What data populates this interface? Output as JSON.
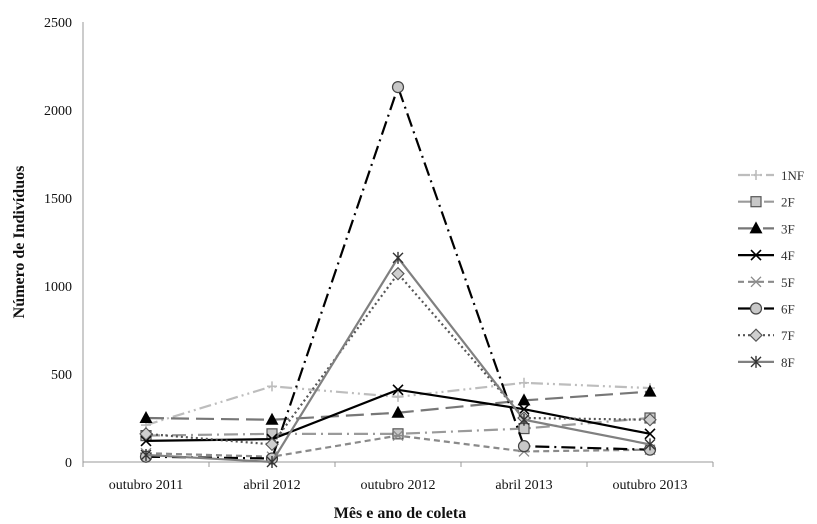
{
  "chart_data": {
    "type": "line",
    "xlabel": "Mês e ano de coleta",
    "ylabel": "Número de Indivíduos",
    "categories": [
      "outubro 2011",
      "abril 2012",
      "outubro 2012",
      "abril 2013",
      "outubro 2013"
    ],
    "ylim": [
      0,
      2500
    ],
    "yticks": [
      0,
      500,
      1000,
      1500,
      2000,
      2500
    ],
    "grid": false,
    "legend_position": "right",
    "series": [
      {
        "name": "1NF",
        "values": [
          210,
          430,
          370,
          450,
          420
        ],
        "color": "#bdbdbd",
        "dash": "dash-dot-dot",
        "marker": "plus"
      },
      {
        "name": "2F",
        "values": [
          150,
          160,
          160,
          190,
          250
        ],
        "color": "#9a9a9a",
        "dash": "long-dash-dot",
        "marker": "square"
      },
      {
        "name": "3F",
        "values": [
          250,
          240,
          280,
          350,
          400
        ],
        "color": "#777777",
        "dash": "long-dash",
        "marker": "triangle"
      },
      {
        "name": "4F",
        "values": [
          120,
          130,
          410,
          300,
          160
        ],
        "color": "#000000",
        "dash": "solid",
        "marker": "x"
      },
      {
        "name": "5F",
        "values": [
          50,
          30,
          150,
          60,
          70
        ],
        "color": "#8a8a8a",
        "dash": "dash",
        "marker": "star"
      },
      {
        "name": "6F",
        "values": [
          30,
          20,
          2130,
          90,
          70
        ],
        "color": "#000000",
        "dash": "long-dash-dot",
        "marker": "circle"
      },
      {
        "name": "7F",
        "values": [
          160,
          100,
          1070,
          250,
          240
        ],
        "color": "#555555",
        "dash": "dot",
        "marker": "diamond"
      },
      {
        "name": "8F",
        "values": [
          40,
          0,
          1160,
          240,
          100
        ],
        "color": "#808080",
        "dash": "solid",
        "marker": "asterisk"
      }
    ]
  }
}
